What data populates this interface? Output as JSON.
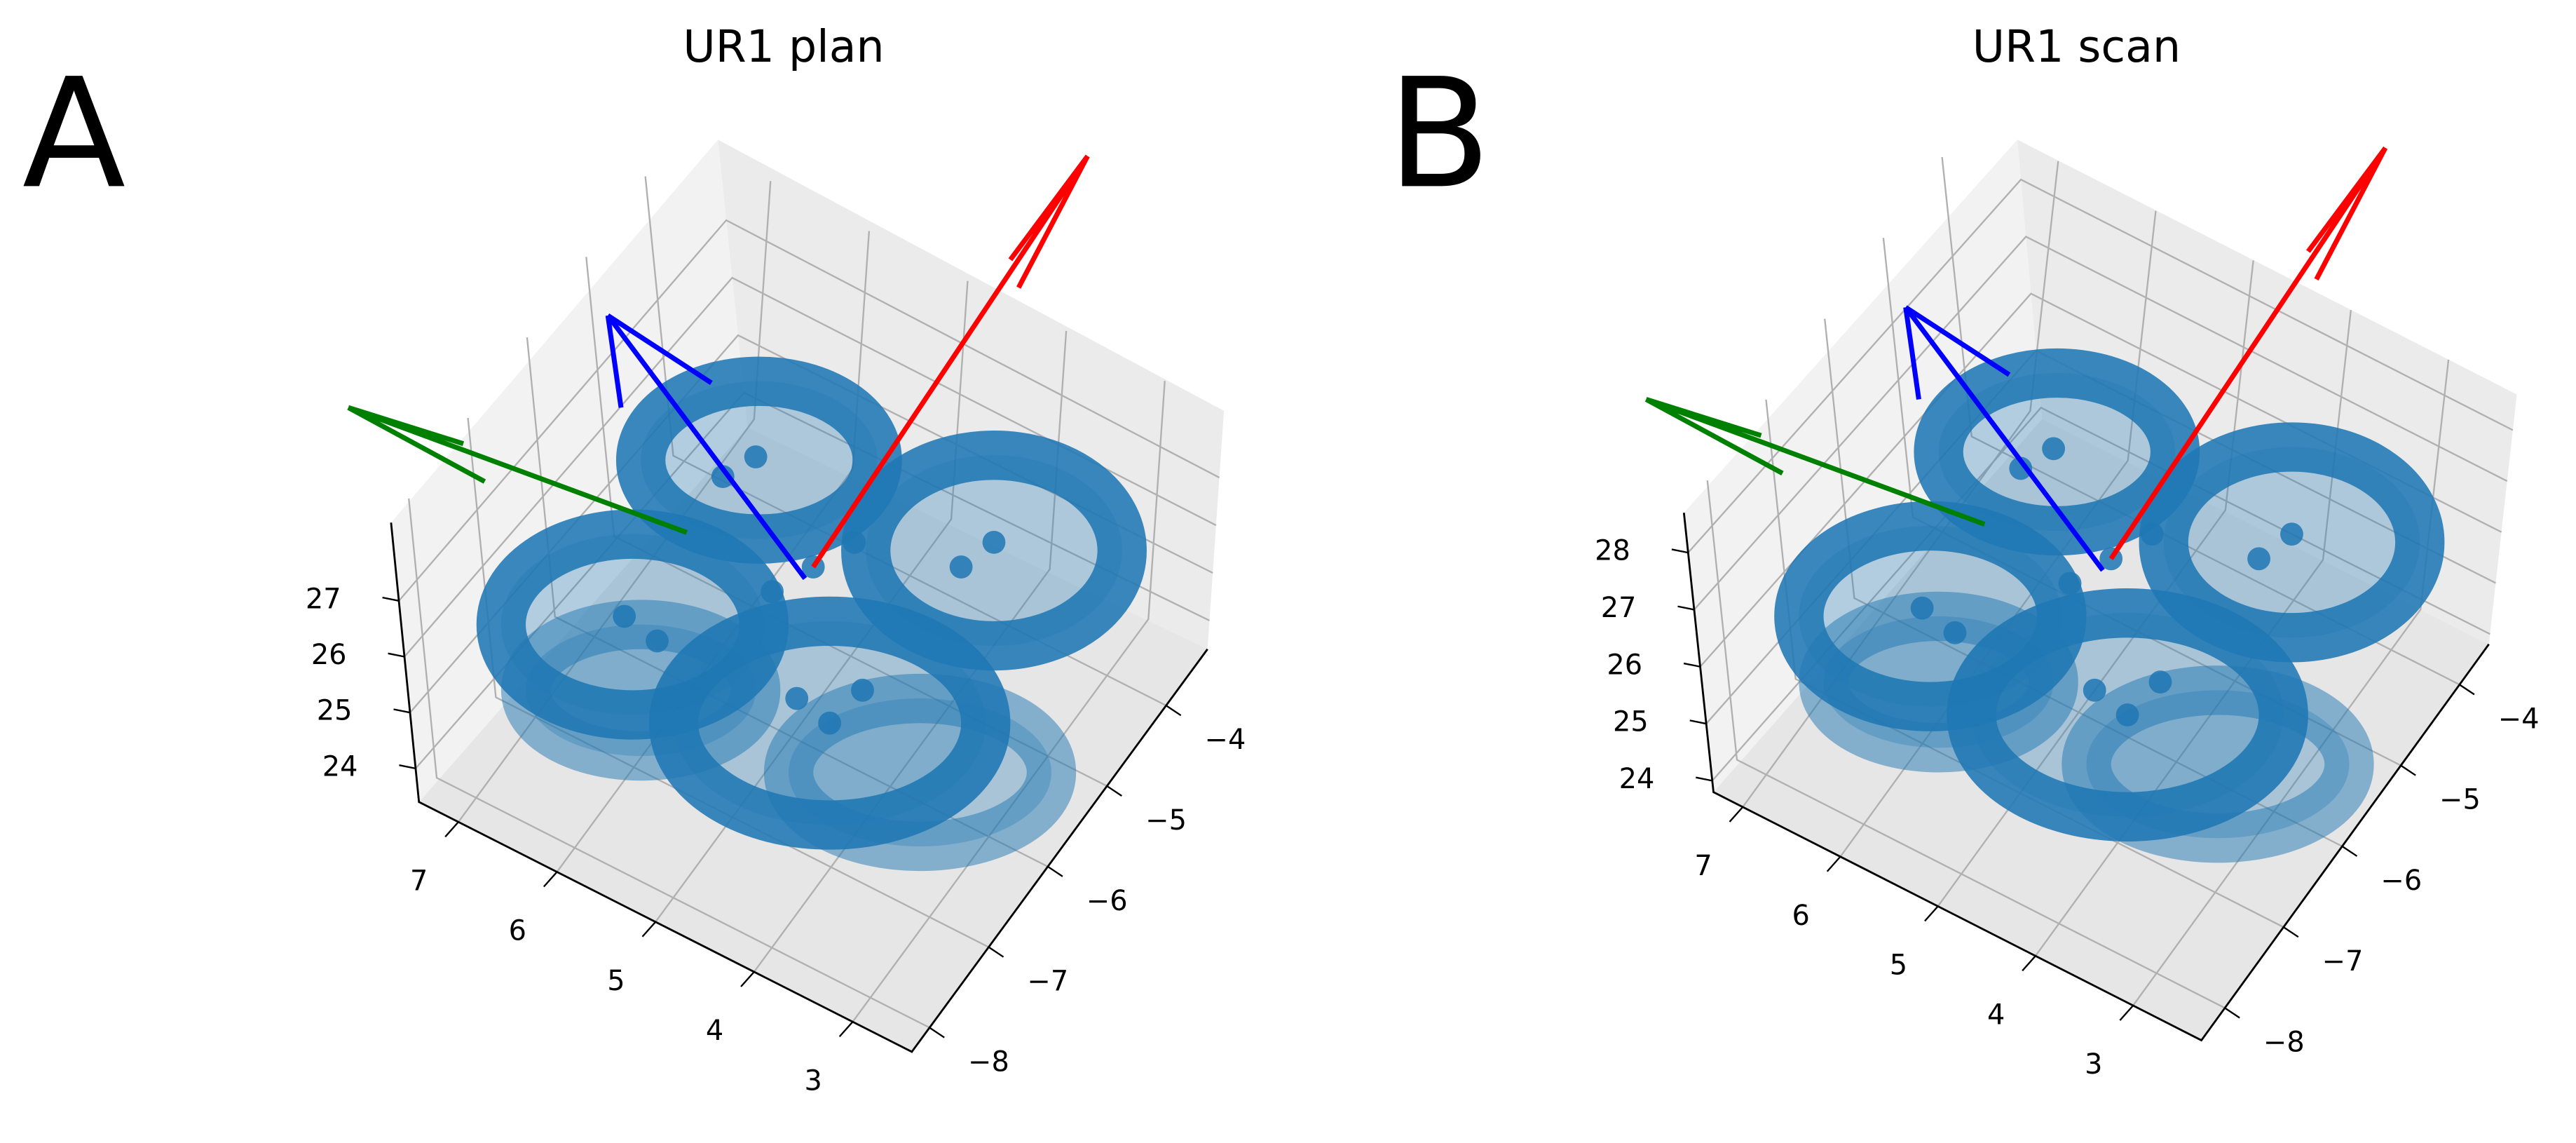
{
  "chart_data": [
    {
      "type": "scatter3d",
      "panel": "A",
      "title": "UR1 plan",
      "xticks": [
        {
          "value": -8,
          "label": "−8"
        },
        {
          "value": -7,
          "label": "−7"
        },
        {
          "value": -6,
          "label": "−6"
        },
        {
          "value": -5,
          "label": "−5"
        },
        {
          "value": -4,
          "label": "−4"
        }
      ],
      "yticks": [
        3,
        4,
        5,
        6,
        7
      ],
      "zticks": [
        24,
        25,
        26,
        27
      ],
      "xlim": [
        -8.3,
        -3.3
      ],
      "ylim": [
        2.4,
        7.4
      ],
      "zlim": [
        23.4,
        28.4
      ]
    },
    {
      "type": "scatter3d",
      "panel": "B",
      "title": "UR1 scan",
      "xticks": [
        {
          "value": -8,
          "label": "−8"
        },
        {
          "value": -7,
          "label": "−7"
        },
        {
          "value": -6,
          "label": "−6"
        },
        {
          "value": -5,
          "label": "−5"
        },
        {
          "value": -4,
          "label": "−4"
        }
      ],
      "yticks": [
        3,
        4,
        5,
        6,
        7
      ],
      "zticks": [
        24,
        25,
        26,
        27,
        28
      ],
      "xlim": [
        -8.4,
        -3.5
      ],
      "ylim": [
        2.3,
        7.3
      ],
      "zlim": [
        23.8,
        28.7
      ]
    }
  ]
}
